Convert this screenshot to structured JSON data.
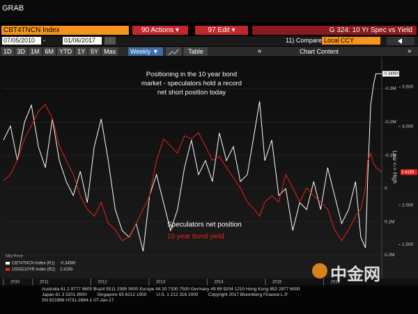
{
  "header": {
    "title": "GRAB"
  },
  "toolbar": {
    "security": "CBT4TNCN Index",
    "actions": "90 Actions ▾",
    "edit": "97 Edit ▾",
    "function": "G 324: 10 Yr Spec vs Yield",
    "start_date": "07/05/2010",
    "end_date": "01/06/2017",
    "compare": "11) Compare",
    "currency": "Local CCY",
    "periods": [
      "1D",
      "3D",
      "1M",
      "6M",
      "YTD",
      "1Y",
      "5Y",
      "Max"
    ],
    "frequency": "Weekly ▼",
    "table": "Table",
    "chart_content": "Chart Content"
  },
  "chart_data": {
    "type": "line",
    "annotation": [
      "Positioning in the 10 year bond",
      "market - speculators hold a record",
      "net short position today"
    ],
    "y_axis_label": "Low <-> High",
    "legend_title": "Mid Price",
    "grid": true,
    "x": [
      2010.5,
      2010.62,
      2010.74,
      2010.86,
      2010.98,
      2011.1,
      2011.22,
      2011.34,
      2011.46,
      2011.58,
      2011.7,
      2011.82,
      2011.94,
      2012.06,
      2012.18,
      2012.3,
      2012.42,
      2012.54,
      2012.66,
      2012.78,
      2012.9,
      2013.01,
      2013.13,
      2013.25,
      2013.37,
      2013.49,
      2013.61,
      2013.73,
      2013.85,
      2013.97,
      2014.09,
      2014.21,
      2014.33,
      2014.45,
      2014.57,
      2014.69,
      2014.81,
      2014.9,
      2014.99,
      2015.11,
      2015.23,
      2015.35,
      2015.47,
      2015.59,
      2015.71,
      2015.83,
      2015.95,
      2016.07,
      2016.19,
      2016.31,
      2016.43,
      2016.55,
      2016.64,
      2016.72,
      2016.76,
      2016.81,
      2016.86,
      2016.9,
      2017.0
    ],
    "xlim": [
      2010.5,
      2017.0
    ],
    "xticks": [
      {
        "value": 2010.5,
        "label": "2010"
      },
      2011,
      2012,
      2013,
      2014,
      2015,
      2016
    ],
    "ylim": [
      270000,
      -395000
    ],
    "yticks": [
      {
        "value": -300000,
        "label": "-0.3M"
      },
      {
        "value": -200000,
        "label": "-0.2M"
      },
      {
        "value": -100000,
        "label": "-0.1M"
      },
      0,
      {
        "value": 100000,
        "label": "0.1M"
      },
      {
        "value": 200000,
        "label": "0.2M"
      }
    ],
    "y2lim": [
      1.07,
      3.88
    ],
    "y2ticks": [
      {
        "value": 3.5,
        "label": "3.500"
      },
      {
        "value": 3.0,
        "label": "3.000"
      },
      {
        "value": 2.0,
        "label": "2.000"
      },
      {
        "value": 1.5,
        "label": "1.500"
      }
    ],
    "series": [
      {
        "name": "CBT4TNCN Index (R1)",
        "label": "Speculators net position",
        "color": "#ffffff",
        "last_label": "-0.345M",
        "values": [
          -146000,
          -188000,
          -84000,
          -199000,
          -251000,
          -126000,
          -63000,
          -209000,
          -84000,
          -21000,
          21000,
          -52000,
          42000,
          -126000,
          -209000,
          -84000,
          63000,
          126000,
          146000,
          105000,
          188000,
          21000,
          -42000,
          42000,
          126000,
          63000,
          -63000,
          -146000,
          -42000,
          -84000,
          -21000,
          -167000,
          -84000,
          -126000,
          -21000,
          -42000,
          -167000,
          -262000,
          -84000,
          -146000,
          21000,
          0,
          126000,
          42000,
          63000,
          -21000,
          63000,
          -63000,
          21000,
          105000,
          63000,
          -21000,
          146000,
          178000,
          -42000,
          -251000,
          -314000,
          -345000,
          -345000
        ]
      },
      {
        "name": "USGG10YR Index (R2)",
        "label": "10 year bond yield",
        "color": "#e3241c",
        "axis": "y2",
        "last_label": "2.4193",
        "values": [
          2.31,
          2.39,
          2.57,
          2.84,
          3.01,
          3.19,
          3.28,
          3.1,
          2.75,
          2.57,
          2.39,
          2.12,
          1.95,
          1.86,
          2.04,
          1.77,
          1.69,
          1.55,
          1.6,
          1.77,
          1.95,
          2.12,
          2.57,
          2.84,
          2.75,
          2.66,
          2.88,
          2.84,
          2.92,
          2.75,
          2.57,
          2.62,
          2.48,
          2.35,
          2.22,
          2.04,
          1.95,
          1.86,
          2.04,
          2.12,
          2.04,
          2.39,
          2.22,
          2.04,
          2.22,
          2.12,
          2.04,
          1.95,
          1.69,
          1.55,
          1.69,
          1.86,
          1.95,
          2.22,
          2.57,
          2.66,
          2.53,
          2.48,
          2.4193
        ]
      }
    ]
  },
  "footer": {
    "lines": [
      "Australia 61 2 9777 8600 Brazil 5511 2395 9000 Europe 44 20 7330 7500 Germany 49 69 9204 1210 Hong Kong 852 2977 6000",
      "Japan 81 3 3201 8900        Singapore 65 6212 1000        U.S. 1 212 318 2000        Copyright 2017 Bloomberg Finance L.P.",
      "SN 621966 H731-2884-1 07-Jan-17"
    ]
  },
  "watermark": "中金网"
}
